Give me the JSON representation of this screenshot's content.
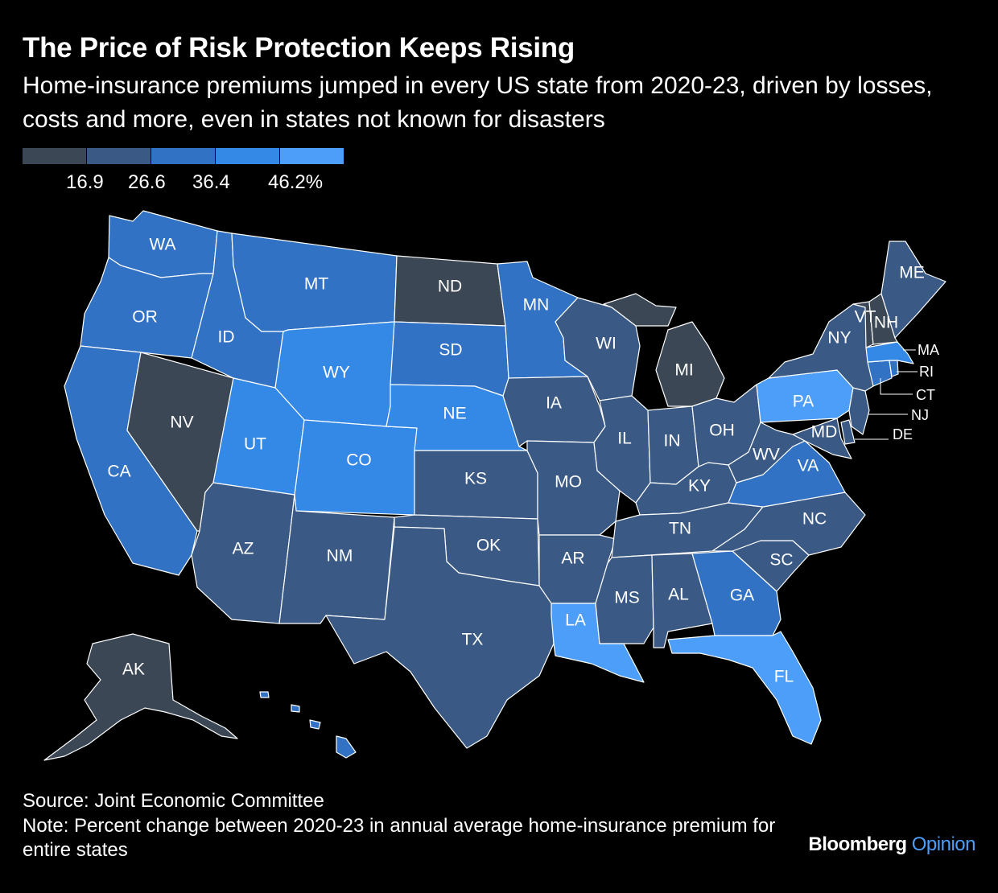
{
  "title": "The Price of Risk Protection Keeps Rising",
  "subtitle": "Home-insurance premiums jumped in every US state from 2020-23, driven by losses, costs and more, even in states not known for disasters",
  "legend": {
    "colors": [
      "#3c4756",
      "#3a5a85",
      "#3172c4",
      "#3488e6",
      "#4c9ef9"
    ],
    "ticks": [
      "16.9",
      "26.6",
      "36.4",
      "46.2%"
    ]
  },
  "map": {
    "bin_colors": [
      "#3c4756",
      "#3a5a85",
      "#3172c4",
      "#3488e6",
      "#4c9ef9"
    ],
    "states": [
      {
        "code": "WA",
        "bin": 2
      },
      {
        "code": "OR",
        "bin": 2
      },
      {
        "code": "CA",
        "bin": 2
      },
      {
        "code": "NV",
        "bin": 0
      },
      {
        "code": "ID",
        "bin": 2
      },
      {
        "code": "MT",
        "bin": 2
      },
      {
        "code": "WY",
        "bin": 3
      },
      {
        "code": "UT",
        "bin": 3
      },
      {
        "code": "CO",
        "bin": 3
      },
      {
        "code": "AZ",
        "bin": 1
      },
      {
        "code": "NM",
        "bin": 1
      },
      {
        "code": "ND",
        "bin": 0
      },
      {
        "code": "SD",
        "bin": 2
      },
      {
        "code": "NE",
        "bin": 3
      },
      {
        "code": "KS",
        "bin": 1
      },
      {
        "code": "OK",
        "bin": 1
      },
      {
        "code": "TX",
        "bin": 1
      },
      {
        "code": "MN",
        "bin": 2
      },
      {
        "code": "IA",
        "bin": 1
      },
      {
        "code": "MO",
        "bin": 1
      },
      {
        "code": "AR",
        "bin": 1
      },
      {
        "code": "LA",
        "bin": 4
      },
      {
        "code": "WI",
        "bin": 1
      },
      {
        "code": "IL",
        "bin": 1
      },
      {
        "code": "MI",
        "bin": 0
      },
      {
        "code": "IN",
        "bin": 1
      },
      {
        "code": "OH",
        "bin": 1
      },
      {
        "code": "KY",
        "bin": 1
      },
      {
        "code": "TN",
        "bin": 1
      },
      {
        "code": "MS",
        "bin": 1
      },
      {
        "code": "AL",
        "bin": 1
      },
      {
        "code": "GA",
        "bin": 2
      },
      {
        "code": "FL",
        "bin": 4
      },
      {
        "code": "SC",
        "bin": 1
      },
      {
        "code": "NC",
        "bin": 1
      },
      {
        "code": "VA",
        "bin": 2
      },
      {
        "code": "WV",
        "bin": 1
      },
      {
        "code": "PA",
        "bin": 4
      },
      {
        "code": "NY",
        "bin": 1
      },
      {
        "code": "VT",
        "bin": 0
      },
      {
        "code": "NH",
        "bin": 0
      },
      {
        "code": "ME",
        "bin": 1
      },
      {
        "code": "MA",
        "bin": 3
      },
      {
        "code": "RI",
        "bin": 2
      },
      {
        "code": "CT",
        "bin": 2
      },
      {
        "code": "NJ",
        "bin": 1
      },
      {
        "code": "DE",
        "bin": 1
      },
      {
        "code": "MD",
        "bin": 1
      },
      {
        "code": "AK",
        "bin": 0
      },
      {
        "code": "HI",
        "bin": 2
      }
    ]
  },
  "source": "Source: Joint Economic Committee",
  "note": "Note: Percent change between 2020-23 in annual average home-insurance premium for entire states",
  "brand": {
    "name": "Bloomberg",
    "suffix": "Opinion",
    "suffix_color": "#4c9ef9"
  }
}
